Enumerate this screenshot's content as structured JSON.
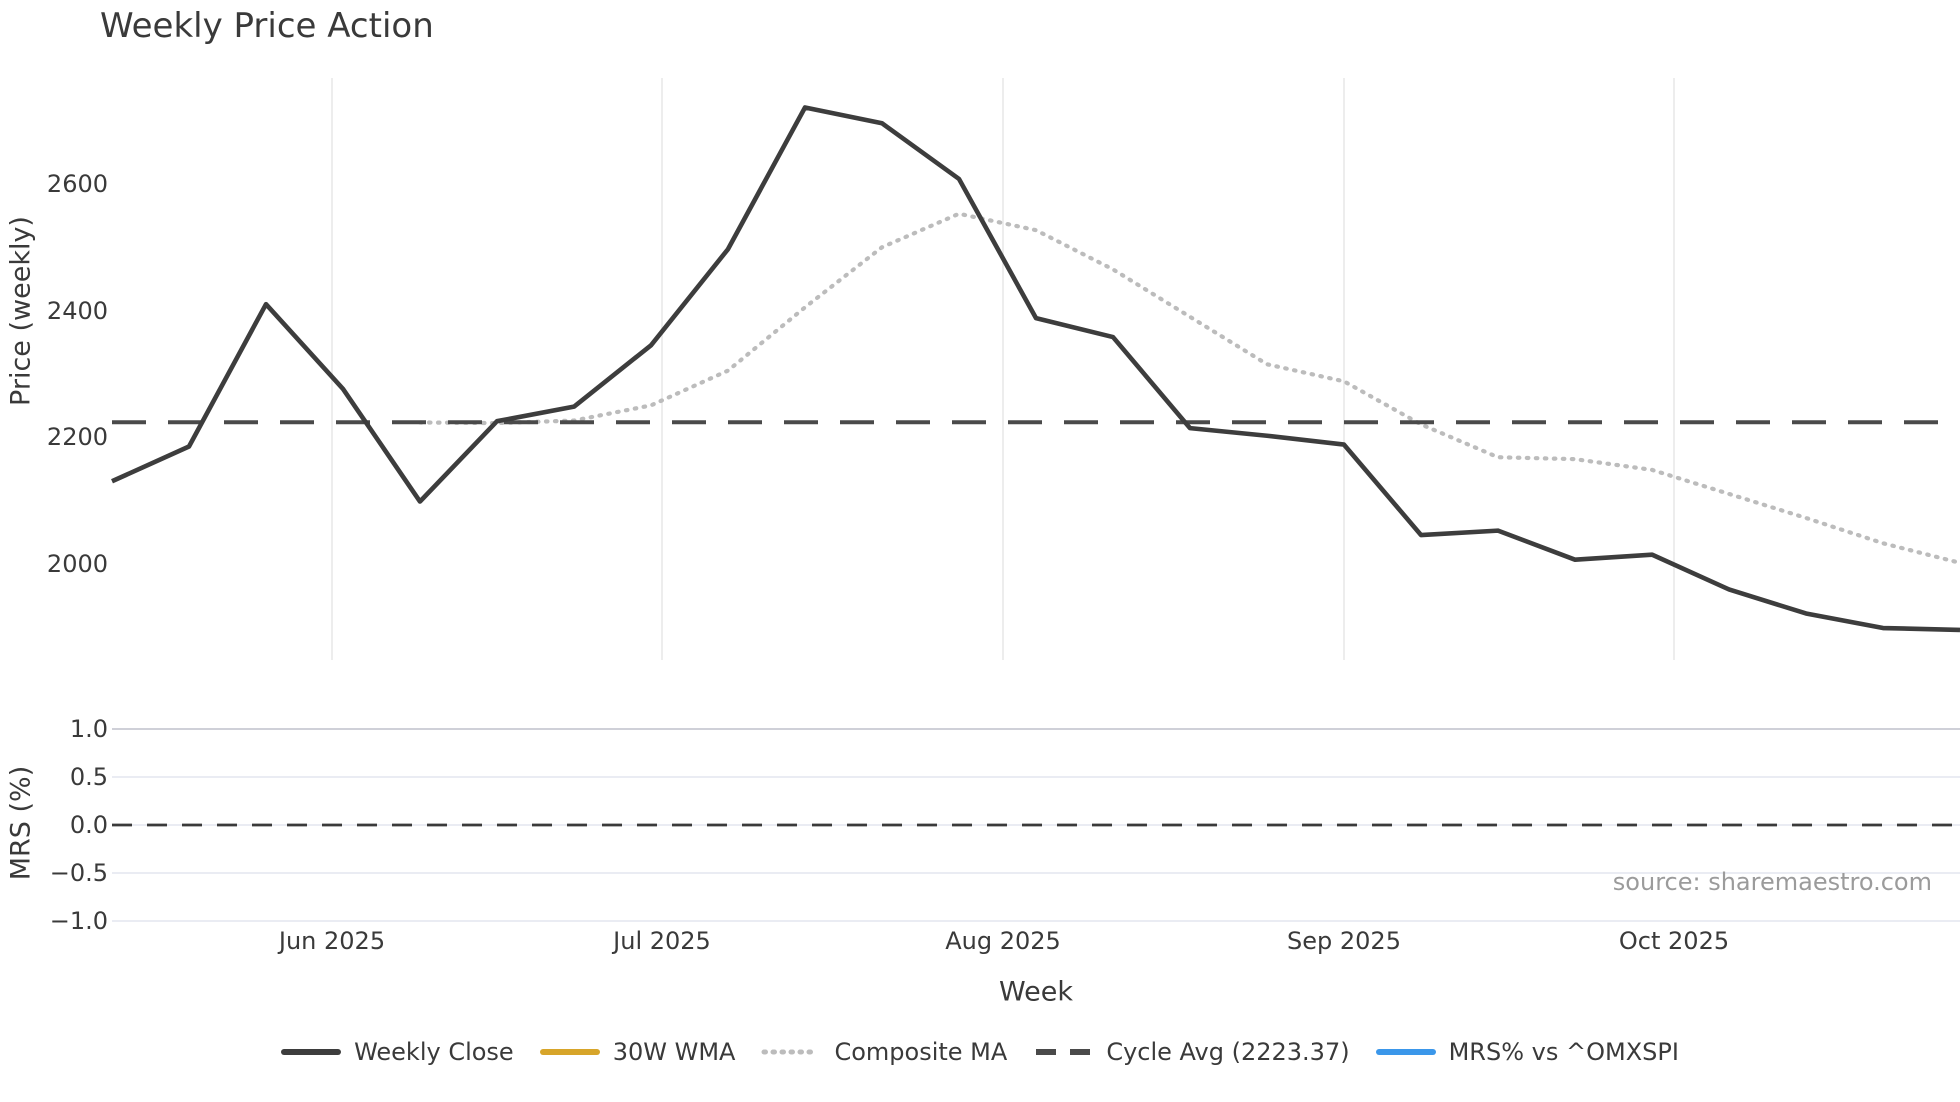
{
  "title": "Weekly Price Action",
  "source": "source: sharemaestro.com",
  "legend": [
    {
      "label": "Weekly Close",
      "swatch": "solid",
      "color": "#3d3d3d"
    },
    {
      "label": "30W WMA",
      "swatch": "solid",
      "color": "#d7a52a"
    },
    {
      "label": "Composite MA",
      "swatch": "dotted",
      "color": "#bcbcbc"
    },
    {
      "label": "Cycle Avg (2223.37)",
      "swatch": "dashed",
      "color": "#4a4a4a"
    },
    {
      "label": "MRS% vs ^OMXSPI",
      "swatch": "solid",
      "color": "#3b97ea"
    }
  ],
  "chart_data": [
    {
      "type": "line",
      "panel": "price",
      "title": "Weekly Price Action",
      "ylabel": "Price (weekly)",
      "ylim": [
        1850,
        2770
      ],
      "grid": "vertical-months-only",
      "x_weekly_dates": [
        "2025-05-12",
        "2025-05-19",
        "2025-05-26",
        "2025-06-02",
        "2025-06-09",
        "2025-06-16",
        "2025-06-23",
        "2025-06-30",
        "2025-07-07",
        "2025-07-14",
        "2025-07-21",
        "2025-07-28",
        "2025-08-04",
        "2025-08-11",
        "2025-08-18",
        "2025-08-25",
        "2025-09-01",
        "2025-09-08",
        "2025-09-15",
        "2025-09-22",
        "2025-09-29",
        "2025-10-06",
        "2025-10-13",
        "2025-10-20",
        "2025-10-27"
      ],
      "x_ticks": [
        {
          "label": "Jun 2025",
          "date": "2025-06-01"
        },
        {
          "label": "Jul 2025",
          "date": "2025-07-01"
        },
        {
          "label": "Aug 2025",
          "date": "2025-08-01"
        },
        {
          "label": "Sep 2025",
          "date": "2025-09-01"
        },
        {
          "label": "Oct 2025",
          "date": "2025-10-01"
        }
      ],
      "y_ticks": [
        {
          "label": "2600",
          "value": 2600
        },
        {
          "label": "2400",
          "value": 2400
        },
        {
          "label": "2200",
          "value": 2200
        },
        {
          "label": "2000",
          "value": 2000
        }
      ],
      "series": [
        {
          "name": "Weekly Close",
          "style": "solid",
          "color": "#3d3d3d",
          "plotted": true,
          "values": [
            2130,
            2185,
            2410,
            2276,
            2098,
            2225,
            2248,
            2345,
            2497,
            2721,
            2696,
            2608,
            2388,
            2358,
            2214,
            2202,
            2188,
            2045,
            2052,
            2006,
            2014,
            1959,
            1921,
            1898,
            1895
          ]
        },
        {
          "name": "Composite MA",
          "style": "dotted",
          "color": "#bcbcbc",
          "plotted": true,
          "values": [
            null,
            null,
            null,
            null,
            2223,
            2222,
            2226,
            2250,
            2305,
            2405,
            2500,
            2553,
            2527,
            2465,
            2390,
            2315,
            2288,
            2220,
            2168,
            2165,
            2148,
            2110,
            2072,
            2032,
            2001
          ]
        },
        {
          "name": "30W WMA",
          "style": "solid",
          "color": "#d7a52a",
          "plotted": false,
          "values": []
        },
        {
          "name": "Cycle Avg",
          "style": "dashed",
          "color": "#4a4a4a",
          "plotted": true,
          "constant": 2223.37
        }
      ],
      "legend_position": "bottom-center"
    },
    {
      "type": "line",
      "panel": "mrs",
      "ylabel": "MRS (%)",
      "xlabel": "Week",
      "ylim": [
        -1.1,
        1.05
      ],
      "grid": "horizontal-only",
      "y_ticks": [
        {
          "label": "1.0",
          "value": 1.0
        },
        {
          "label": "0.5",
          "value": 0.5
        },
        {
          "label": "0.0",
          "value": 0.0
        },
        {
          "label": "−0.5",
          "value": -0.5
        },
        {
          "label": "−1.0",
          "value": -1.0
        }
      ],
      "series": [
        {
          "name": "MRS% vs ^OMXSPI",
          "style": "solid",
          "color": "#3b97ea",
          "plotted": false,
          "values": []
        },
        {
          "name": "Zero line",
          "style": "dashed",
          "color": "#3a3a3a",
          "plotted": true,
          "constant": 0.0
        }
      ]
    }
  ]
}
